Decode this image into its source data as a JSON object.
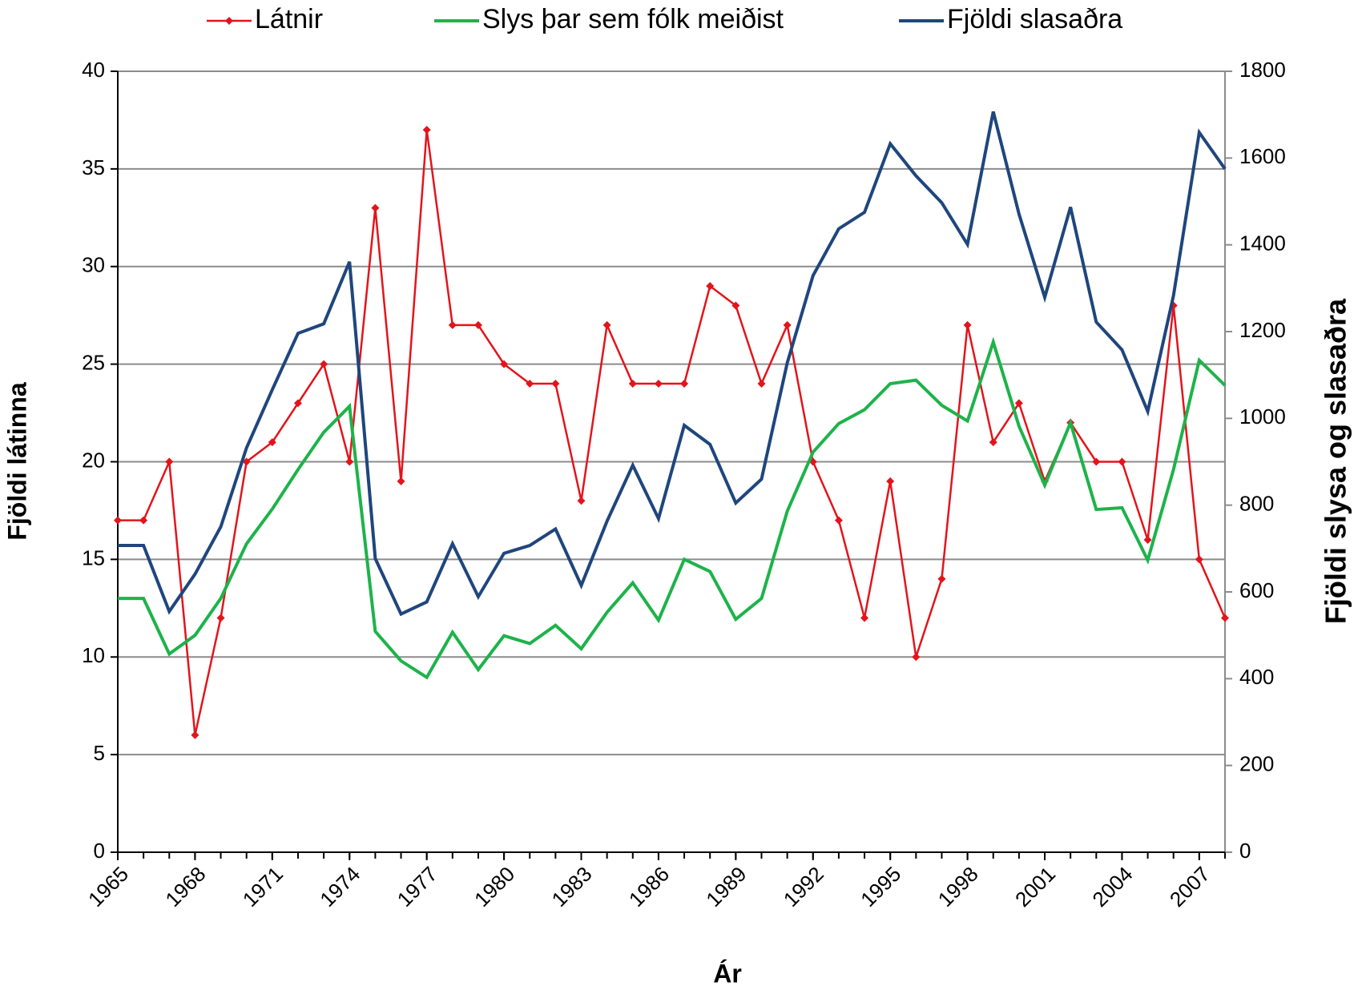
{
  "chart_data": {
    "type": "line",
    "x_label": "Ár",
    "y_label": "Fjöldi látinna",
    "y2_label": "Fjöldi slysa og slasaðra",
    "x": [
      1965,
      1966,
      1967,
      1968,
      1969,
      1970,
      1971,
      1972,
      1973,
      1974,
      1975,
      1976,
      1977,
      1978,
      1979,
      1980,
      1981,
      1982,
      1983,
      1984,
      1985,
      1986,
      1987,
      1988,
      1989,
      1990,
      1991,
      1992,
      1993,
      1994,
      1995,
      1996,
      1997,
      1998,
      1999,
      2000,
      2001,
      2002,
      2003,
      2004,
      2005,
      2006,
      2007,
      2008
    ],
    "xlim": [
      1965,
      2008
    ],
    "xticks": [
      1965,
      1968,
      1971,
      1974,
      1977,
      1980,
      1983,
      1986,
      1989,
      1992,
      1995,
      1998,
      2001,
      2004,
      2007
    ],
    "ylim": [
      0,
      40
    ],
    "yticks": [
      0,
      5,
      10,
      15,
      20,
      25,
      30,
      35,
      40
    ],
    "y2lim": [
      0,
      1800
    ],
    "y2ticks": [
      0,
      200,
      400,
      600,
      800,
      1000,
      1200,
      1400,
      1600,
      1800
    ],
    "grid": true,
    "legend": "top",
    "series": [
      {
        "name": "Látnir",
        "color": "#e3141b",
        "marker": "diamond",
        "values": [
          17,
          17,
          20,
          6,
          12,
          20,
          21,
          23,
          25,
          20,
          33,
          19,
          37,
          27,
          27,
          25,
          24,
          24,
          18,
          27,
          24,
          24,
          24,
          29,
          28,
          24,
          27,
          20,
          17,
          12,
          19,
          10,
          14,
          27,
          21,
          23,
          19,
          22,
          20,
          20,
          16,
          28,
          15,
          12
        ]
      },
      {
        "name": "Slys þar sem fólk meiðist",
        "color": "#1db34a",
        "axis": "y2",
        "values": [
          585,
          585,
          457,
          500,
          585,
          711,
          791,
          882,
          968,
          1028,
          509,
          441,
          403,
          507,
          421,
          499,
          481,
          523,
          469,
          553,
          621,
          535,
          675,
          647,
          537,
          585,
          786,
          922,
          988,
          1020,
          1080,
          1088,
          1030,
          994,
          1176,
          982,
          846,
          990,
          790,
          794,
          673,
          882,
          1134,
          1076
        ]
      },
      {
        "name": "Fjöldi slasaðra",
        "color": "#1f467d",
        "axis": "y2",
        "values": [
          707,
          707,
          555,
          641,
          750,
          932,
          1066,
          1196,
          1218,
          1361,
          677,
          549,
          577,
          711,
          589,
          689,
          707,
          745,
          615,
          763,
          892,
          769,
          984,
          940,
          805,
          860,
          1128,
          1329,
          1437,
          1475,
          1633,
          1559,
          1497,
          1401,
          1707,
          1471,
          1279,
          1487,
          1222,
          1158,
          1016,
          1283,
          1659,
          1575
        ]
      }
    ]
  }
}
